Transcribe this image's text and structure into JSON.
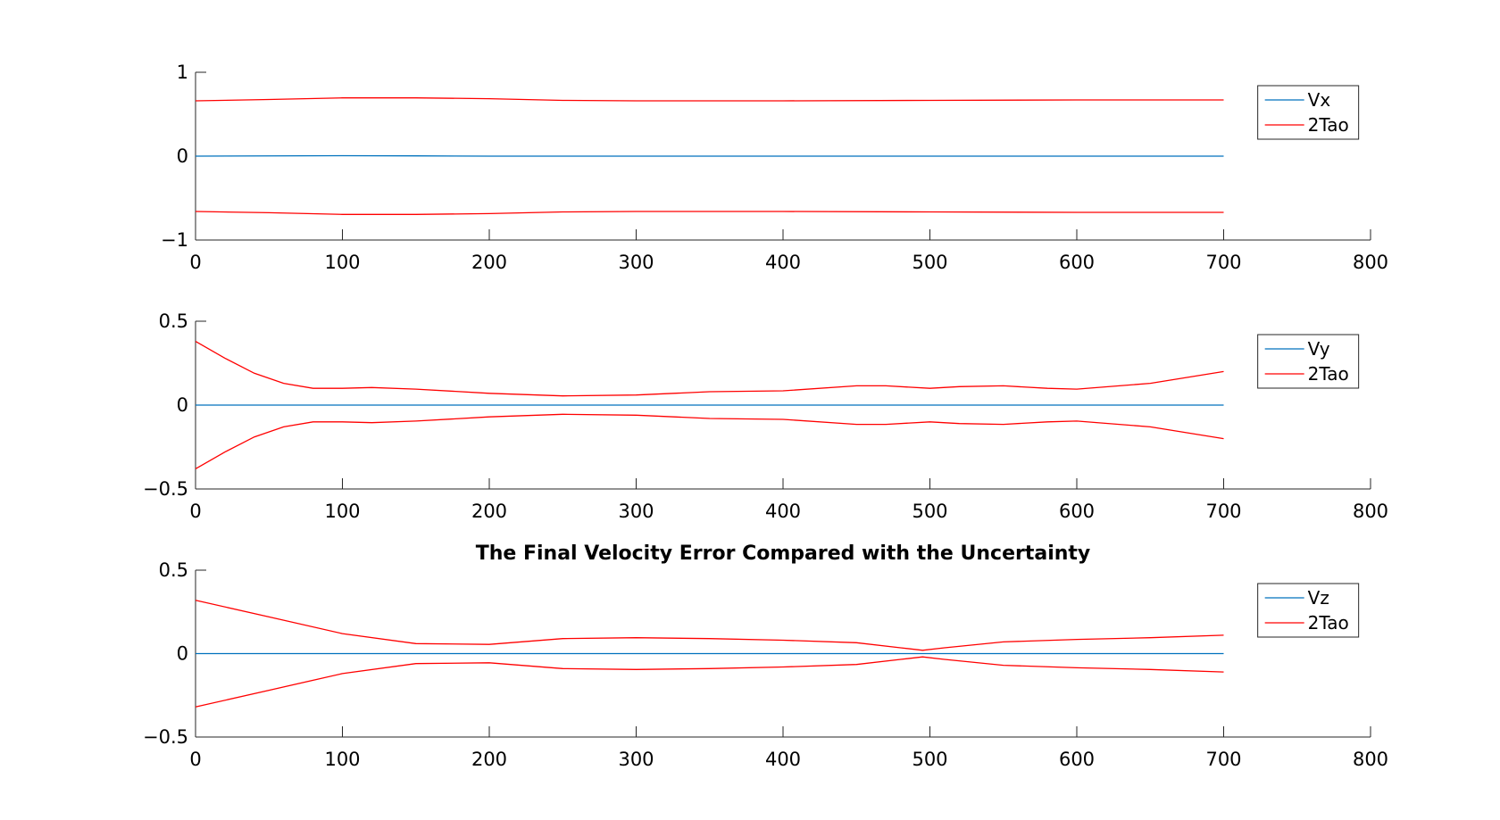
{
  "chart_data": [
    {
      "type": "line",
      "title": "",
      "xlabel": "",
      "ylabel": "",
      "xlim": [
        0,
        800
      ],
      "ylim": [
        -1,
        1
      ],
      "xticks": [
        0,
        100,
        200,
        300,
        400,
        500,
        600,
        700,
        800
      ],
      "yticks": [
        -1,
        0,
        1
      ],
      "ytick_labels": [
        "−1",
        "0",
        "1"
      ],
      "legend": {
        "position": "top-right"
      },
      "series": [
        {
          "name": "Vx",
          "color": "#0072BD",
          "legend": true,
          "x": [
            0,
            100,
            150,
            200,
            300,
            400,
            500,
            600,
            700
          ],
          "y": [
            0,
            0.005,
            0.003,
            0,
            0,
            0,
            0,
            0,
            0
          ]
        },
        {
          "name": "2Tao",
          "color": "#FF0000",
          "legend": true,
          "x": [
            0,
            50,
            100,
            150,
            200,
            250,
            300,
            400,
            500,
            600,
            700
          ],
          "y": [
            0.66,
            0.675,
            0.695,
            0.695,
            0.685,
            0.665,
            0.66,
            0.66,
            0.665,
            0.67,
            0.67
          ]
        },
        {
          "name": "",
          "color": "#FF0000",
          "legend": false,
          "x": [
            0,
            50,
            100,
            150,
            200,
            250,
            300,
            400,
            500,
            600,
            700
          ],
          "y": [
            -0.66,
            -0.675,
            -0.695,
            -0.695,
            -0.685,
            -0.665,
            -0.66,
            -0.66,
            -0.665,
            -0.67,
            -0.67
          ]
        }
      ]
    },
    {
      "type": "line",
      "title": "",
      "xlabel": "",
      "ylabel": "",
      "xlim": [
        0,
        800
      ],
      "ylim": [
        -0.5,
        0.5
      ],
      "xticks": [
        0,
        100,
        200,
        300,
        400,
        500,
        600,
        700,
        800
      ],
      "yticks": [
        -0.5,
        0,
        0.5
      ],
      "ytick_labels": [
        "−0.5",
        "0",
        "0.5"
      ],
      "legend": {
        "position": "top-right"
      },
      "series": [
        {
          "name": "Vy",
          "color": "#0072BD",
          "legend": true,
          "x": [
            0,
            700
          ],
          "y": [
            0,
            0
          ]
        },
        {
          "name": "2Tao",
          "color": "#FF0000",
          "legend": true,
          "x": [
            0,
            20,
            40,
            60,
            80,
            100,
            120,
            150,
            200,
            250,
            300,
            350,
            400,
            450,
            470,
            500,
            520,
            550,
            580,
            600,
            650,
            700
          ],
          "y": [
            0.38,
            0.28,
            0.19,
            0.13,
            0.1,
            0.1,
            0.105,
            0.095,
            0.07,
            0.055,
            0.06,
            0.08,
            0.085,
            0.115,
            0.115,
            0.1,
            0.11,
            0.115,
            0.1,
            0.095,
            0.13,
            0.2
          ]
        },
        {
          "name": "",
          "color": "#FF0000",
          "legend": false,
          "x": [
            0,
            20,
            40,
            60,
            80,
            100,
            120,
            150,
            200,
            250,
            300,
            350,
            400,
            450,
            470,
            500,
            520,
            550,
            580,
            600,
            650,
            700
          ],
          "y": [
            -0.38,
            -0.28,
            -0.19,
            -0.13,
            -0.1,
            -0.1,
            -0.105,
            -0.095,
            -0.07,
            -0.055,
            -0.06,
            -0.08,
            -0.085,
            -0.115,
            -0.115,
            -0.1,
            -0.11,
            -0.115,
            -0.1,
            -0.095,
            -0.13,
            -0.2
          ]
        }
      ]
    },
    {
      "type": "line",
      "title": "The Final Velocity Error Compared with the Uncertainty",
      "xlabel": "",
      "ylabel": "",
      "xlim": [
        0,
        800
      ],
      "ylim": [
        -0.5,
        0.5
      ],
      "xticks": [
        0,
        100,
        200,
        300,
        400,
        500,
        600,
        700,
        800
      ],
      "yticks": [
        -0.5,
        0,
        0.5
      ],
      "ytick_labels": [
        "−0.5",
        "0",
        "0.5"
      ],
      "legend": {
        "position": "top-right"
      },
      "series": [
        {
          "name": "Vz",
          "color": "#0072BD",
          "legend": true,
          "x": [
            0,
            700
          ],
          "y": [
            0,
            0
          ]
        },
        {
          "name": "2Tao",
          "color": "#FF0000",
          "legend": true,
          "x": [
            0,
            50,
            100,
            150,
            200,
            250,
            300,
            350,
            400,
            450,
            480,
            495,
            510,
            550,
            600,
            650,
            700
          ],
          "y": [
            0.32,
            0.22,
            0.12,
            0.06,
            0.055,
            0.09,
            0.095,
            0.09,
            0.08,
            0.065,
            0.035,
            0.02,
            0.035,
            0.07,
            0.085,
            0.095,
            0.11
          ]
        },
        {
          "name": "",
          "color": "#FF0000",
          "legend": false,
          "x": [
            0,
            50,
            100,
            150,
            200,
            250,
            300,
            350,
            400,
            450,
            480,
            495,
            510,
            550,
            600,
            650,
            700
          ],
          "y": [
            -0.32,
            -0.22,
            -0.12,
            -0.06,
            -0.055,
            -0.09,
            -0.095,
            -0.09,
            -0.08,
            -0.065,
            -0.035,
            -0.02,
            -0.035,
            -0.07,
            -0.085,
            -0.095,
            -0.11
          ]
        }
      ]
    }
  ]
}
